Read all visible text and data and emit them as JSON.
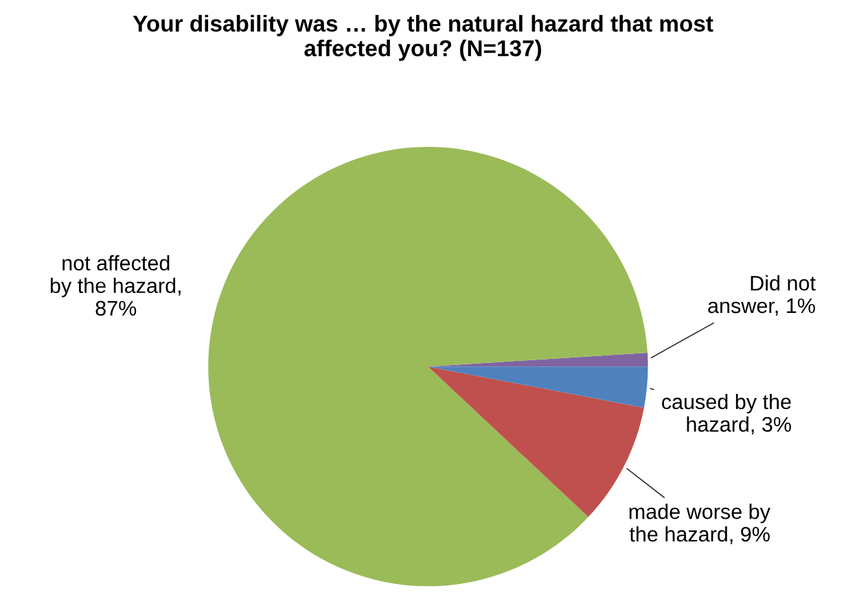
{
  "chart_data": {
    "type": "pie",
    "title": "Your disability was … by the natural hazard that most affected you? (N=137)",
    "categories": [
      "Did not answer, 1%",
      "not affected by the hazard, 87%",
      "made worse by the hazard, 9%",
      "caused by the hazard, 3%"
    ],
    "values": [
      1,
      87,
      9,
      3
    ],
    "colors": [
      "#8064a2",
      "#9bbb59",
      "#c0504d",
      "#4f81bd"
    ],
    "legend": false
  }
}
